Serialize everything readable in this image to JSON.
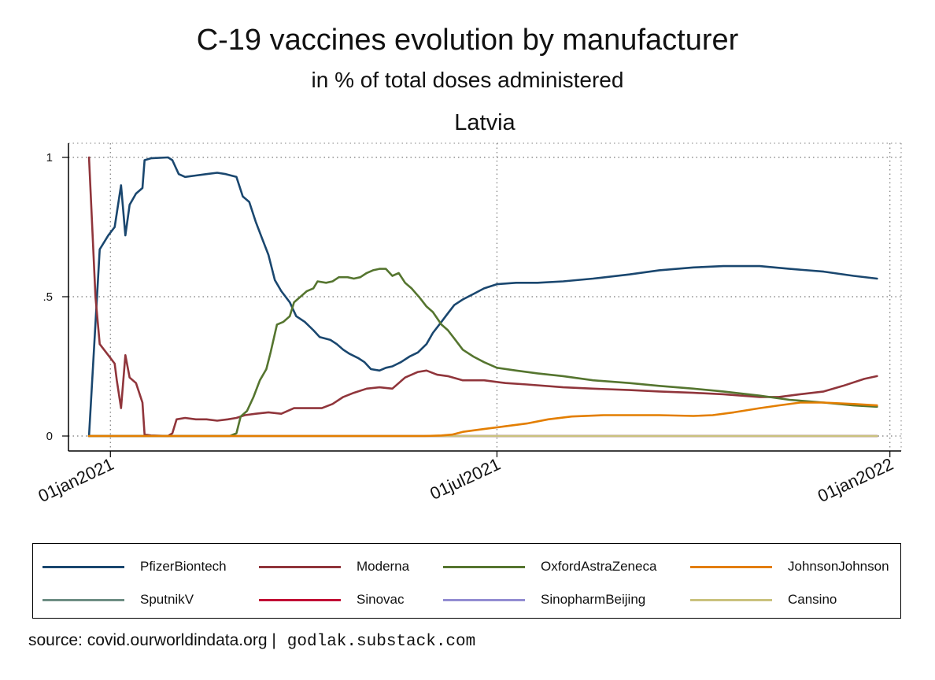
{
  "title": "C-19 vaccines evolution by manufacturer",
  "subtitle": "in % of total doses administered",
  "facet_label": "Latvia",
  "source": {
    "prefix": "source: covid.ourworldindata.org |",
    "link": "godlak.substack.com"
  },
  "chart_data": {
    "type": "line",
    "x_format": "date",
    "xlim": [
      "2020-12-19",
      "2021-12-31"
    ],
    "ylim": [
      0,
      1.04
    ],
    "x_ticks": [
      {
        "value": "2021-01-01",
        "label": "01jan2021"
      },
      {
        "value": "2021-07-01",
        "label": "01jul2021"
      },
      {
        "value": "2022-01-01",
        "label": "01jan2022"
      }
    ],
    "y_ticks": [
      {
        "value": 0,
        "label": "0"
      },
      {
        "value": 0.5,
        "label": ".5"
      },
      {
        "value": 1,
        "label": "1"
      }
    ],
    "grid": true,
    "legend_position": "bottom",
    "series": [
      {
        "name": "PfizerBiontech",
        "color": "#1a476f",
        "points": [
          [
            "2020-12-22",
            0
          ],
          [
            "2020-12-27",
            0.67
          ],
          [
            "2020-12-31",
            0.72
          ],
          [
            "2021-01-03",
            0.75
          ],
          [
            "2021-01-06",
            0.9
          ],
          [
            "2021-01-08",
            0.72
          ],
          [
            "2021-01-10",
            0.83
          ],
          [
            "2021-01-13",
            0.87
          ],
          [
            "2021-01-16",
            0.89
          ],
          [
            "2021-01-17",
            0.99
          ],
          [
            "2021-01-20",
            0.997
          ],
          [
            "2021-01-28",
            1.0
          ],
          [
            "2021-01-30",
            0.99
          ],
          [
            "2021-02-02",
            0.94
          ],
          [
            "2021-02-05",
            0.93
          ],
          [
            "2021-02-10",
            0.935
          ],
          [
            "2021-02-15",
            0.94
          ],
          [
            "2021-02-20",
            0.945
          ],
          [
            "2021-02-24",
            0.94
          ],
          [
            "2021-03-01",
            0.93
          ],
          [
            "2021-03-04",
            0.86
          ],
          [
            "2021-03-07",
            0.84
          ],
          [
            "2021-03-10",
            0.77
          ],
          [
            "2021-03-13",
            0.71
          ],
          [
            "2021-03-16",
            0.65
          ],
          [
            "2021-03-19",
            0.56
          ],
          [
            "2021-03-22",
            0.52
          ],
          [
            "2021-03-26",
            0.48
          ],
          [
            "2021-03-29",
            0.43
          ],
          [
            "2021-04-02",
            0.41
          ],
          [
            "2021-04-06",
            0.38
          ],
          [
            "2021-04-09",
            0.355
          ],
          [
            "2021-04-14",
            0.345
          ],
          [
            "2021-04-17",
            0.33
          ],
          [
            "2021-04-20",
            0.31
          ],
          [
            "2021-04-23",
            0.295
          ],
          [
            "2021-04-27",
            0.28
          ],
          [
            "2021-04-30",
            0.265
          ],
          [
            "2021-05-03",
            0.24
          ],
          [
            "2021-05-07",
            0.235
          ],
          [
            "2021-05-10",
            0.245
          ],
          [
            "2021-05-13",
            0.25
          ],
          [
            "2021-05-17",
            0.265
          ],
          [
            "2021-05-21",
            0.285
          ],
          [
            "2021-05-25",
            0.3
          ],
          [
            "2021-05-29",
            0.33
          ],
          [
            "2021-06-01",
            0.37
          ],
          [
            "2021-06-05",
            0.41
          ],
          [
            "2021-06-08",
            0.44
          ],
          [
            "2021-06-11",
            0.47
          ],
          [
            "2021-06-15",
            0.49
          ],
          [
            "2021-06-20",
            0.51
          ],
          [
            "2021-06-25",
            0.53
          ],
          [
            "2021-07-01",
            0.545
          ],
          [
            "2021-07-10",
            0.55
          ],
          [
            "2021-07-20",
            0.55
          ],
          [
            "2021-08-01",
            0.555
          ],
          [
            "2021-08-15",
            0.565
          ],
          [
            "2021-09-01",
            0.58
          ],
          [
            "2021-09-15",
            0.595
          ],
          [
            "2021-10-01",
            0.605
          ],
          [
            "2021-10-15",
            0.61
          ],
          [
            "2021-11-01",
            0.61
          ],
          [
            "2021-11-15",
            0.6
          ],
          [
            "2021-12-01",
            0.59
          ],
          [
            "2021-12-15",
            0.575
          ],
          [
            "2021-12-26",
            0.565
          ]
        ]
      },
      {
        "name": "Moderna",
        "color": "#90353b",
        "points": [
          [
            "2020-12-22",
            1.0
          ],
          [
            "2020-12-25",
            0.5
          ],
          [
            "2020-12-27",
            0.33
          ],
          [
            "2020-12-31",
            0.29
          ],
          [
            "2021-01-03",
            0.26
          ],
          [
            "2021-01-04",
            0.2
          ],
          [
            "2021-01-06",
            0.1
          ],
          [
            "2021-01-08",
            0.29
          ],
          [
            "2021-01-10",
            0.21
          ],
          [
            "2021-01-13",
            0.19
          ],
          [
            "2021-01-16",
            0.12
          ],
          [
            "2021-01-17",
            0.005
          ],
          [
            "2021-01-20",
            0.002
          ],
          [
            "2021-01-28",
            0.0
          ],
          [
            "2021-01-30",
            0.01
          ],
          [
            "2021-02-01",
            0.06
          ],
          [
            "2021-02-05",
            0.065
          ],
          [
            "2021-02-10",
            0.06
          ],
          [
            "2021-02-15",
            0.06
          ],
          [
            "2021-02-20",
            0.055
          ],
          [
            "2021-02-25",
            0.06
          ],
          [
            "2021-03-01",
            0.065
          ],
          [
            "2021-03-05",
            0.075
          ],
          [
            "2021-03-10",
            0.08
          ],
          [
            "2021-03-16",
            0.085
          ],
          [
            "2021-03-22",
            0.08
          ],
          [
            "2021-03-28",
            0.1
          ],
          [
            "2021-04-04",
            0.1
          ],
          [
            "2021-04-10",
            0.1
          ],
          [
            "2021-04-15",
            0.115
          ],
          [
            "2021-04-20",
            0.14
          ],
          [
            "2021-04-25",
            0.155
          ],
          [
            "2021-05-01",
            0.17
          ],
          [
            "2021-05-07",
            0.175
          ],
          [
            "2021-05-13",
            0.17
          ],
          [
            "2021-05-19",
            0.21
          ],
          [
            "2021-05-25",
            0.23
          ],
          [
            "2021-05-29",
            0.235
          ],
          [
            "2021-06-03",
            0.22
          ],
          [
            "2021-06-08",
            0.215
          ],
          [
            "2021-06-15",
            0.2
          ],
          [
            "2021-06-25",
            0.2
          ],
          [
            "2021-07-05",
            0.19
          ],
          [
            "2021-07-15",
            0.185
          ],
          [
            "2021-08-01",
            0.175
          ],
          [
            "2021-08-15",
            0.17
          ],
          [
            "2021-09-01",
            0.165
          ],
          [
            "2021-09-15",
            0.16
          ],
          [
            "2021-10-01",
            0.155
          ],
          [
            "2021-10-15",
            0.15
          ],
          [
            "2021-11-01",
            0.14
          ],
          [
            "2021-11-10",
            0.14
          ],
          [
            "2021-11-20",
            0.15
          ],
          [
            "2021-12-01",
            0.16
          ],
          [
            "2021-12-10",
            0.18
          ],
          [
            "2021-12-20",
            0.205
          ],
          [
            "2021-12-26",
            0.215
          ]
        ]
      },
      {
        "name": "OxfordAstraZeneca",
        "color": "#55752f",
        "points": [
          [
            "2020-12-22",
            0
          ],
          [
            "2021-02-26",
            0
          ],
          [
            "2021-03-01",
            0.01
          ],
          [
            "2021-03-03",
            0.07
          ],
          [
            "2021-03-06",
            0.09
          ],
          [
            "2021-03-09",
            0.14
          ],
          [
            "2021-03-12",
            0.2
          ],
          [
            "2021-03-15",
            0.24
          ],
          [
            "2021-03-17",
            0.3
          ],
          [
            "2021-03-20",
            0.4
          ],
          [
            "2021-03-23",
            0.41
          ],
          [
            "2021-03-26",
            0.43
          ],
          [
            "2021-03-28",
            0.48
          ],
          [
            "2021-03-31",
            0.5
          ],
          [
            "2021-04-03",
            0.52
          ],
          [
            "2021-04-06",
            0.53
          ],
          [
            "2021-04-08",
            0.555
          ],
          [
            "2021-04-12",
            0.55
          ],
          [
            "2021-04-15",
            0.555
          ],
          [
            "2021-04-18",
            0.57
          ],
          [
            "2021-04-22",
            0.57
          ],
          [
            "2021-04-25",
            0.565
          ],
          [
            "2021-04-28",
            0.57
          ],
          [
            "2021-05-01",
            0.585
          ],
          [
            "2021-05-04",
            0.595
          ],
          [
            "2021-05-07",
            0.6
          ],
          [
            "2021-05-10",
            0.6
          ],
          [
            "2021-05-13",
            0.575
          ],
          [
            "2021-05-16",
            0.585
          ],
          [
            "2021-05-19",
            0.55
          ],
          [
            "2021-05-22",
            0.53
          ],
          [
            "2021-05-26",
            0.495
          ],
          [
            "2021-05-29",
            0.465
          ],
          [
            "2021-06-01",
            0.445
          ],
          [
            "2021-06-05",
            0.4
          ],
          [
            "2021-06-08",
            0.38
          ],
          [
            "2021-06-11",
            0.35
          ],
          [
            "2021-06-15",
            0.31
          ],
          [
            "2021-06-20",
            0.285
          ],
          [
            "2021-06-25",
            0.265
          ],
          [
            "2021-07-01",
            0.245
          ],
          [
            "2021-07-10",
            0.235
          ],
          [
            "2021-07-20",
            0.225
          ],
          [
            "2021-08-01",
            0.215
          ],
          [
            "2021-08-15",
            0.2
          ],
          [
            "2021-09-01",
            0.19
          ],
          [
            "2021-09-15",
            0.18
          ],
          [
            "2021-10-01",
            0.17
          ],
          [
            "2021-10-15",
            0.16
          ],
          [
            "2021-11-01",
            0.145
          ],
          [
            "2021-11-15",
            0.13
          ],
          [
            "2021-12-01",
            0.12
          ],
          [
            "2021-12-15",
            0.11
          ],
          [
            "2021-12-26",
            0.105
          ]
        ]
      },
      {
        "name": "JohnsonJohnson",
        "color": "#e37e00",
        "points": [
          [
            "2020-12-22",
            0
          ],
          [
            "2021-05-28",
            0
          ],
          [
            "2021-06-05",
            0.002
          ],
          [
            "2021-06-10",
            0.005
          ],
          [
            "2021-06-15",
            0.015
          ],
          [
            "2021-06-25",
            0.025
          ],
          [
            "2021-07-05",
            0.035
          ],
          [
            "2021-07-15",
            0.045
          ],
          [
            "2021-07-25",
            0.06
          ],
          [
            "2021-08-05",
            0.07
          ],
          [
            "2021-08-20",
            0.075
          ],
          [
            "2021-09-01",
            0.075
          ],
          [
            "2021-09-15",
            0.075
          ],
          [
            "2021-10-01",
            0.072
          ],
          [
            "2021-10-10",
            0.075
          ],
          [
            "2021-10-20",
            0.085
          ],
          [
            "2021-11-01",
            0.1
          ],
          [
            "2021-11-10",
            0.11
          ],
          [
            "2021-11-20",
            0.12
          ],
          [
            "2021-12-01",
            0.12
          ],
          [
            "2021-12-15",
            0.115
          ],
          [
            "2021-12-26",
            0.11
          ]
        ]
      },
      {
        "name": "SputnikV",
        "color": "#6e8e84",
        "points": [
          [
            "2020-12-22",
            0
          ],
          [
            "2021-12-26",
            0
          ]
        ]
      },
      {
        "name": "Sinovac",
        "color": "#c10534",
        "points": [
          [
            "2020-12-22",
            0
          ],
          [
            "2021-12-26",
            0
          ]
        ]
      },
      {
        "name": "SinopharmBeijing",
        "color": "#938dd2",
        "points": [
          [
            "2020-12-22",
            0
          ],
          [
            "2021-12-26",
            0
          ]
        ]
      },
      {
        "name": "Cansino",
        "color": "#cac27e",
        "points": [
          [
            "2020-12-22",
            0
          ],
          [
            "2021-12-26",
            0
          ]
        ]
      }
    ]
  }
}
